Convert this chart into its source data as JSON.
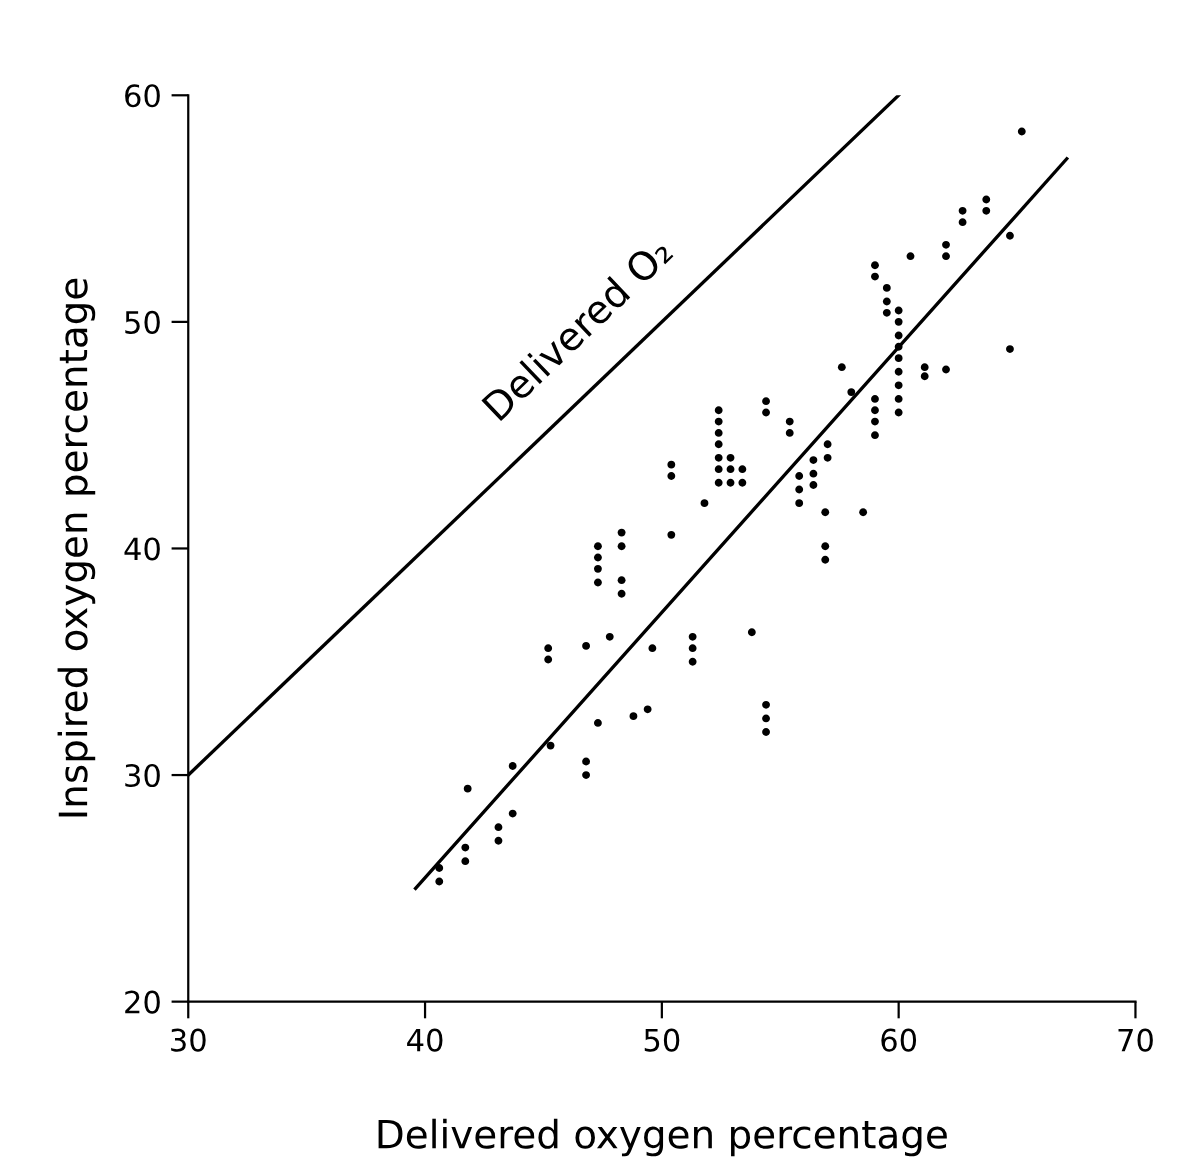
{
  "chart_data": {
    "type": "scatter",
    "xlabel": "Delivered oxygen percentage",
    "ylabel": "Inspired oxygen percentage",
    "xlim": [
      30,
      70
    ],
    "ylim": [
      20,
      60
    ],
    "xticks": [
      30,
      40,
      50,
      60,
      70
    ],
    "yticks": [
      20,
      30,
      40,
      50,
      60
    ],
    "grid": false,
    "legend": false,
    "marker": "circle",
    "series": [
      {
        "color": "#000000",
        "x": [
          40.6,
          40.6,
          41.8,
          41.7,
          41.7,
          43.1,
          43.1,
          43.7,
          43.7,
          45.2,
          45.2,
          45.3,
          46.8,
          46.8,
          46.8,
          47.3,
          47.3,
          47.3,
          47.3,
          47.3,
          47.8,
          48.3,
          48.3,
          48.3,
          48.3,
          48.8,
          49.4,
          49.6,
          50.4,
          50.4,
          50.4,
          51.3,
          51.3,
          51.3,
          51.8,
          52.4,
          52.4,
          52.4,
          52.4,
          52.4,
          52.4,
          52.4,
          52.9,
          52.9,
          52.9,
          53.4,
          53.4,
          53.8,
          54.4,
          54.4,
          54.4,
          54.4,
          54.4,
          55.4,
          55.4,
          55.8,
          55.8,
          55.8,
          56.4,
          56.4,
          56.4,
          57.0,
          57.0,
          56.9,
          56.9,
          56.9,
          57.6,
          58.0,
          58.5,
          59.0,
          59.0,
          59.0,
          59.0,
          59.0,
          59.0,
          59.5,
          59.5,
          59.5,
          60.0,
          60.0,
          60.0,
          60.0,
          60.0,
          60.0,
          60.0,
          60.0,
          60.0,
          60.5,
          61.1,
          61.1,
          62.0,
          62.0,
          62.0,
          62.7,
          62.7,
          63.7,
          63.7,
          64.7,
          64.7,
          65.2
        ],
        "values": [
          25.9,
          25.3,
          29.4,
          26.8,
          26.2,
          27.7,
          27.1,
          28.3,
          30.4,
          35.6,
          35.1,
          31.3,
          35.7,
          30.6,
          30.0,
          40.1,
          39.6,
          39.1,
          38.5,
          32.3,
          36.1,
          40.7,
          40.1,
          38.6,
          38.0,
          32.6,
          32.9,
          35.6,
          43.7,
          43.2,
          40.6,
          36.1,
          35.6,
          35.0,
          42.0,
          46.1,
          45.6,
          45.1,
          44.6,
          44.0,
          43.5,
          42.9,
          44.0,
          43.5,
          42.9,
          43.5,
          42.9,
          36.3,
          46.5,
          46.0,
          33.1,
          32.5,
          31.9,
          45.6,
          45.1,
          43.2,
          42.6,
          42.0,
          43.9,
          43.3,
          42.8,
          44.6,
          44.0,
          41.6,
          40.1,
          39.5,
          48.0,
          46.9,
          41.6,
          52.5,
          52.0,
          46.6,
          46.1,
          45.6,
          45.0,
          51.5,
          50.9,
          50.4,
          50.5,
          50.0,
          49.4,
          48.9,
          48.4,
          47.8,
          47.2,
          46.6,
          46.0,
          52.9,
          48.0,
          47.6,
          53.4,
          52.9,
          47.9,
          54.9,
          54.4,
          55.4,
          54.9,
          53.8,
          48.8,
          58.4
        ]
      },
      {
        "type": "line",
        "color": "#000000",
        "name": "Delivered O₂",
        "marker": "none",
        "x": [
          30,
          60
        ],
        "values": [
          30,
          60
        ]
      },
      {
        "type": "line",
        "color": "#000000",
        "marker": "none",
        "x": [
          39.6,
          67.1
        ],
        "values": [
          25.0,
          57.2
        ]
      }
    ]
  }
}
